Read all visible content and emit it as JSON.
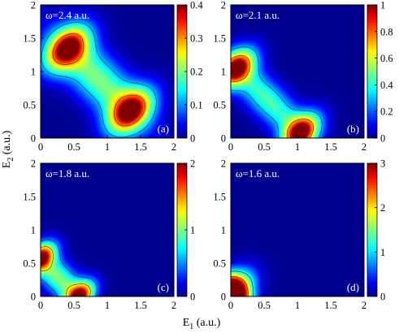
{
  "chart_data": {
    "type": "heatmap",
    "xlabel_main": "E",
    "xlabel_sub": "1",
    "xlabel_unit": " (a.u.)",
    "ylabel_main": "E",
    "ylabel_sub": "2",
    "ylabel_unit": " (a.u.)",
    "xlim": [
      0,
      2
    ],
    "ylim": [
      0,
      2
    ],
    "x_ticks": [
      "0",
      "0.5",
      "1",
      "1.5",
      "2"
    ],
    "y_ticks": [
      "0",
      "0.5",
      "1",
      "1.5",
      "2"
    ],
    "colormap": [
      "#00008f",
      "#0000ff",
      "#00ffff",
      "#7fff7f",
      "#ffff00",
      "#ff0000",
      "#800000"
    ],
    "panels": [
      {
        "title": "ω=2.4 a.u.",
        "tag": "(a)",
        "colorbar": {
          "max": 0.4,
          "ticks": [
            "0",
            "0.1",
            "0.2",
            "0.3",
            "0.4"
          ],
          "tick_values": [
            0,
            0.1,
            0.2,
            0.3,
            0.4
          ]
        },
        "peaks": [
          {
            "E1": 0.4,
            "E2": 1.35,
            "amp": 0.36,
            "s1": 0.24,
            "s2": 0.24,
            "rho": 0.45
          },
          {
            "E1": 1.35,
            "E2": 0.4,
            "amp": 0.36,
            "s1": 0.24,
            "s2": 0.24,
            "rho": 0.45
          }
        ],
        "ridge": {
          "sum": 1.75,
          "amp": 0.2,
          "width_perp": 0.24,
          "width_along": 0.62
        },
        "contours": [
          0.12,
          0.3,
          0.38
        ]
      },
      {
        "title": "ω=2.1 a.u.",
        "tag": "(b)",
        "colorbar": {
          "max": 1.0,
          "ticks": [
            "0",
            "0.2",
            "0.4",
            "0.6",
            "0.8",
            "1"
          ],
          "tick_values": [
            0,
            0.2,
            0.4,
            0.6,
            0.8,
            1.0
          ]
        },
        "peaks": [
          {
            "E1": 0.08,
            "E2": 1.05,
            "amp": 0.95,
            "s1": 0.2,
            "s2": 0.2,
            "rho": 0.45
          },
          {
            "E1": 1.05,
            "E2": 0.08,
            "amp": 0.95,
            "s1": 0.2,
            "s2": 0.2,
            "rho": 0.45
          }
        ],
        "ridge": {
          "sum": 1.13,
          "amp": 0.45,
          "width_perp": 0.18,
          "width_along": 0.55
        },
        "contours": [
          0.3,
          0.7,
          0.92
        ]
      },
      {
        "title": "ω=1.8 a.u.",
        "tag": "(c)",
        "colorbar": {
          "max": 2.0,
          "ticks": [
            "0",
            "1",
            "2"
          ],
          "tick_values": [
            0,
            1,
            2
          ]
        },
        "peaks": [
          {
            "E1": 0.0,
            "E2": 0.58,
            "amp": 1.85,
            "s1": 0.16,
            "s2": 0.16,
            "rho": 0.45
          },
          {
            "E1": 0.58,
            "E2": 0.0,
            "amp": 1.85,
            "s1": 0.16,
            "s2": 0.16,
            "rho": 0.45
          }
        ],
        "ridge": {
          "sum": 0.55,
          "amp": 1.0,
          "width_perp": 0.16,
          "width_along": 0.3
        },
        "contours": [
          0.5,
          1.2,
          1.8
        ]
      },
      {
        "title": "ω=1.6 a.u.",
        "tag": "(d)",
        "colorbar": {
          "max": 3.0,
          "ticks": [
            "0",
            "1",
            "2",
            "3"
          ],
          "tick_values": [
            0,
            1,
            2,
            3
          ]
        },
        "peaks": [
          {
            "E1": 0.0,
            "E2": 0.05,
            "amp": 2.9,
            "s1": 0.22,
            "s2": 0.22,
            "rho": 0.45
          }
        ],
        "ridge": {
          "sum": 0.1,
          "amp": 2.0,
          "width_perp": 0.14,
          "width_along": 0.28
        },
        "contours": [
          0.3,
          1.2,
          2.2
        ]
      }
    ]
  }
}
